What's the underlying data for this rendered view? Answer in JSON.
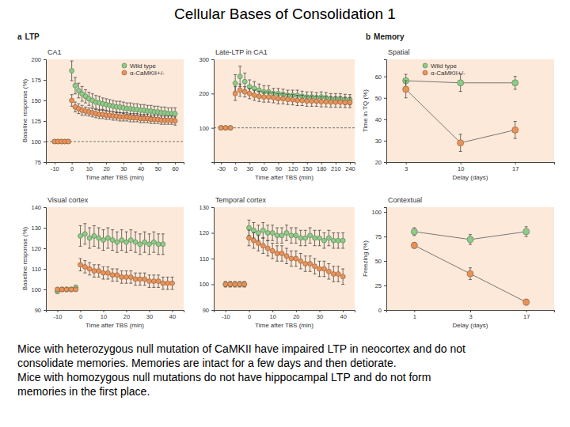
{
  "title": "Cellular Bases of Consolidation 1",
  "panels": [
    {
      "letter": "a",
      "label": "LTP"
    },
    {
      "letter": "b",
      "label": "Memory"
    }
  ],
  "chart_data": [
    {
      "type": "scatter",
      "title": "CA1",
      "x_label": "Time after TBS (min)",
      "y_label": "Baseline response (%)",
      "x": [
        -10,
        -8,
        -6,
        -4,
        -2,
        0,
        2,
        4,
        6,
        8,
        10,
        12,
        14,
        16,
        18,
        20,
        22,
        24,
        26,
        28,
        30,
        32,
        34,
        36,
        38,
        40,
        42,
        44,
        46,
        48,
        50,
        52,
        54,
        56,
        58,
        60
      ],
      "xlim": [
        -15,
        65
      ],
      "xticks": [
        -10,
        0,
        10,
        20,
        30,
        40,
        50,
        60
      ],
      "ylim": [
        75,
        200
      ],
      "yticks": [
        75,
        100,
        125,
        150,
        175,
        200
      ],
      "baseline": 100,
      "legend": "top-right",
      "series": [
        {
          "name": "Wild type",
          "color": "#8fcb88",
          "marker": "circle",
          "values": [
            100,
            100,
            100,
            100,
            100,
            186,
            168,
            162,
            158,
            155,
            152,
            150,
            148,
            147,
            146,
            145,
            144,
            143,
            142,
            142,
            141,
            140,
            140,
            139,
            139,
            138,
            138,
            137,
            137,
            136,
            136,
            135,
            135,
            134,
            134,
            134
          ],
          "errors": [
            1,
            1,
            1,
            1,
            1,
            12,
            10,
            9,
            9,
            8,
            8,
            8,
            8,
            8,
            7,
            7,
            7,
            7,
            7,
            7,
            7,
            7,
            7,
            7,
            7,
            7,
            7,
            7,
            7,
            7,
            7,
            7,
            7,
            7,
            7,
            7
          ]
        },
        {
          "name": "α-CaMKII+/-",
          "color": "#e8935a",
          "marker": "circle",
          "values": [
            100,
            100,
            100,
            100,
            100,
            150,
            142,
            140,
            138,
            137,
            136,
            135,
            134,
            133,
            133,
            132,
            132,
            131,
            131,
            130,
            130,
            130,
            129,
            129,
            129,
            128,
            128,
            128,
            127,
            127,
            127,
            126,
            126,
            126,
            126,
            125
          ],
          "errors": [
            1,
            1,
            1,
            1,
            1,
            7,
            6,
            6,
            6,
            5,
            5,
            5,
            5,
            5,
            5,
            5,
            5,
            5,
            5,
            5,
            5,
            5,
            5,
            5,
            5,
            5,
            5,
            5,
            5,
            5,
            5,
            5,
            5,
            5,
            5,
            5
          ]
        }
      ]
    },
    {
      "type": "scatter",
      "title": "Late-LTP in CA1",
      "x_label": "Time after TBS (min)",
      "x": [
        -30,
        -20,
        -10,
        0,
        10,
        20,
        30,
        40,
        50,
        60,
        70,
        80,
        90,
        100,
        110,
        120,
        130,
        140,
        150,
        160,
        170,
        180,
        190,
        200,
        210,
        220,
        230,
        240
      ],
      "xlim": [
        -45,
        250
      ],
      "xticks": [
        -30,
        0,
        30,
        60,
        90,
        120,
        150,
        180,
        210,
        240
      ],
      "ylim": [
        0,
        300
      ],
      "yticks": [
        100,
        200,
        300
      ],
      "baseline": 100,
      "series": [
        {
          "color": "#8fcb88",
          "marker": "circle",
          "values": [
            100,
            100,
            100,
            230,
            250,
            235,
            220,
            215,
            210,
            205,
            205,
            200,
            200,
            198,
            195,
            195,
            195,
            192,
            190,
            190,
            188,
            190,
            188,
            185,
            185,
            185,
            183,
            182
          ],
          "errors": [
            5,
            5,
            5,
            25,
            30,
            25,
            20,
            20,
            18,
            18,
            18,
            15,
            15,
            15,
            15,
            15,
            15,
            15,
            15,
            15,
            15,
            15,
            15,
            15,
            15,
            15,
            15,
            15
          ]
        },
        {
          "color": "#e8935a",
          "marker": "circle",
          "values": [
            100,
            100,
            100,
            200,
            210,
            205,
            200,
            195,
            192,
            190,
            190,
            188,
            185,
            185,
            183,
            182,
            180,
            180,
            178,
            178,
            178,
            176,
            176,
            175,
            175,
            175,
            174,
            174
          ],
          "errors": [
            5,
            5,
            5,
            20,
            18,
            15,
            15,
            15,
            15,
            15,
            15,
            15,
            15,
            15,
            15,
            15,
            15,
            15,
            15,
            15,
            15,
            15,
            15,
            15,
            15,
            15,
            15,
            15
          ]
        }
      ]
    },
    {
      "type": "line",
      "title": "Spatial",
      "x_label": "Delay (days)",
      "y_label": "Time in TQ (%)",
      "x": [
        3,
        10,
        17
      ],
      "xlim": [
        0.5,
        22
      ],
      "xticks": [
        3,
        10,
        17
      ],
      "ylim": [
        20,
        68
      ],
      "yticks": [
        20,
        30,
        40,
        50,
        60
      ],
      "legend": "top",
      "series": [
        {
          "name": "Wild type",
          "color": "#8fcb88",
          "marker": "circle",
          "line_style": "solid",
          "values": [
            58,
            57,
            57
          ],
          "errors": [
            3,
            4,
            3
          ]
        },
        {
          "name": "α-CaMKII+/-",
          "color": "#e8935a",
          "marker": "circle",
          "line_style": "solid",
          "values": [
            54,
            29,
            35
          ],
          "errors": [
            4,
            4,
            4
          ]
        }
      ]
    },
    {
      "type": "scatter",
      "title": "Visual cortex",
      "x_label": "Time after TBS (min)",
      "y_label": "Baseline response (%)",
      "x": [
        -10,
        -8,
        -6,
        -4,
        -2,
        0,
        2,
        4,
        6,
        8,
        10,
        12,
        14,
        16,
        18,
        20,
        22,
        24,
        26,
        28,
        30,
        32,
        34,
        36,
        38,
        40
      ],
      "xlim": [
        -15,
        45
      ],
      "xticks": [
        -10,
        0,
        10,
        20,
        30,
        40
      ],
      "ylim": [
        90,
        140
      ],
      "yticks": [
        90,
        100,
        110,
        120,
        130,
        140
      ],
      "series": [
        {
          "color": "#8fcb88",
          "marker": "circle",
          "values": [
            99,
            100,
            100,
            100,
            101,
            126,
            127,
            125,
            126,
            125,
            124,
            125,
            124,
            123,
            124,
            123,
            124,
            123,
            122,
            123,
            122,
            123,
            122,
            122,
            null,
            null
          ],
          "errors": [
            1,
            1,
            1,
            1,
            1,
            5,
            5,
            5,
            5,
            5,
            5,
            5,
            5,
            5,
            5,
            5,
            5,
            5,
            5,
            5,
            5,
            5,
            5,
            5,
            null,
            null
          ]
        },
        {
          "color": "#e8935a",
          "marker": "circle",
          "values": [
            100,
            100,
            100,
            100,
            100,
            112,
            111,
            110,
            109,
            109,
            108,
            108,
            107,
            107,
            106,
            106,
            106,
            105,
            105,
            105,
            104,
            104,
            104,
            103,
            103,
            103
          ],
          "errors": [
            1,
            1,
            1,
            1,
            1,
            3,
            3,
            3,
            3,
            3,
            3,
            3,
            3,
            3,
            3,
            3,
            3,
            3,
            3,
            3,
            3,
            3,
            3,
            3,
            3,
            3
          ]
        }
      ]
    },
    {
      "type": "scatter",
      "title": "Temporal cortex",
      "x_label": "Time after TBS (min)",
      "x": [
        -10,
        -8,
        -6,
        -4,
        -2,
        0,
        2,
        4,
        6,
        8,
        10,
        12,
        14,
        16,
        18,
        20,
        22,
        24,
        26,
        28,
        30,
        32,
        34,
        36,
        38,
        40
      ],
      "xlim": [
        -15,
        45
      ],
      "xticks": [
        -10,
        0,
        10,
        20,
        30,
        40
      ],
      "ylim": [
        90,
        130
      ],
      "yticks": [
        90,
        100,
        110,
        120,
        130
      ],
      "series": [
        {
          "color": "#8fcb88",
          "marker": "circle",
          "values": [
            100,
            100,
            100,
            100,
            100,
            122,
            121,
            120,
            121,
            120,
            120,
            119,
            119,
            120,
            119,
            119,
            118,
            118,
            119,
            118,
            118,
            117,
            118,
            117,
            117,
            117
          ],
          "errors": [
            1,
            1,
            1,
            1,
            1,
            3,
            3,
            3,
            3,
            3,
            3,
            3,
            3,
            3,
            3,
            3,
            3,
            3,
            3,
            3,
            3,
            3,
            3,
            3,
            3,
            3
          ]
        },
        {
          "color": "#e8935a",
          "marker": "circle",
          "values": [
            100,
            100,
            100,
            100,
            100,
            118,
            117,
            116,
            115,
            114,
            113,
            112,
            112,
            111,
            110,
            110,
            109,
            108,
            108,
            107,
            106,
            106,
            105,
            104,
            104,
            103
          ],
          "errors": [
            1,
            1,
            1,
            1,
            1,
            3,
            3,
            3,
            3,
            3,
            3,
            3,
            3,
            3,
            3,
            3,
            3,
            3,
            3,
            3,
            3,
            3,
            3,
            3,
            3,
            3
          ]
        }
      ]
    },
    {
      "type": "line",
      "title": "Contextual",
      "x_label": "Delay (days)",
      "y_label": "Freezing (%)",
      "categories": [
        1,
        3,
        17
      ],
      "ylim": [
        0,
        105
      ],
      "yticks": [
        0,
        25,
        50,
        75,
        100
      ],
      "series": [
        {
          "color": "#8fcb88",
          "marker": "circle",
          "line_style": "solid",
          "values": [
            80,
            72,
            80
          ],
          "errors": [
            4,
            5,
            5
          ]
        },
        {
          "color": "#e8935a",
          "marker": "circle",
          "line_style": "solid",
          "values": [
            66,
            37,
            8
          ],
          "errors": [
            3,
            6,
            3
          ]
        }
      ]
    }
  ],
  "caption": [
    "Mice with heterozygous null mutation of CaMKII have impaired LTP in neocortex and do not",
    "consolidate memories. Memories are intact for a few days and then detiorate.",
    "Mice with homozygous null mutations do not have hippocampal LTP and do not form",
    "memories in the first place."
  ]
}
